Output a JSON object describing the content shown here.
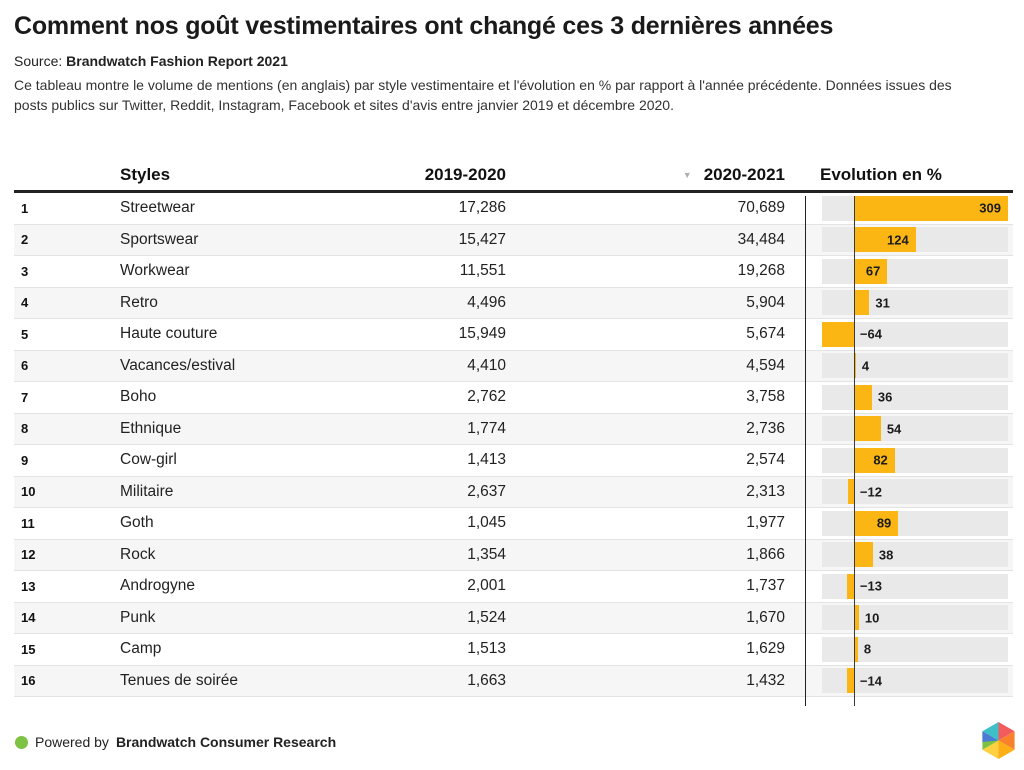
{
  "title": "Comment nos goût vestimentaires ont changé ces 3 dernières années",
  "source": {
    "prefix": "Source:",
    "name": "Brandwatch Fashion Report 2021"
  },
  "description": "Ce tableau montre le volume de mentions (en anglais) par style vestimentaire et l'évolution en % par rapport à l'année précédente. Données issues des posts publics sur Twitter, Reddit, Instagram, Facebook et sites d'avis entre janvier 2019 et décembre 2020.",
  "table": {
    "headers": {
      "rank": "",
      "styles": "Styles",
      "col_2019_2020": "2019-2020",
      "col_2020_2021": "2020-2021",
      "evolution": "Evolution en %"
    },
    "sort": {
      "column": "2020-2021",
      "direction": "desc",
      "icon": "▼"
    },
    "rows": [
      {
        "rank": "1",
        "style": "Streetwear",
        "mentions_2019_2020": "17,286",
        "mentions_2020_2021": "70,689",
        "evolution_pct": 309
      },
      {
        "rank": "2",
        "style": "Sportswear",
        "mentions_2019_2020": "15,427",
        "mentions_2020_2021": "34,484",
        "evolution_pct": 124
      },
      {
        "rank": "3",
        "style": "Workwear",
        "mentions_2019_2020": "11,551",
        "mentions_2020_2021": "19,268",
        "evolution_pct": 67
      },
      {
        "rank": "4",
        "style": "Retro",
        "mentions_2019_2020": "4,496",
        "mentions_2020_2021": "5,904",
        "evolution_pct": 31
      },
      {
        "rank": "5",
        "style": "Haute couture",
        "mentions_2019_2020": "15,949",
        "mentions_2020_2021": "5,674",
        "evolution_pct": -64
      },
      {
        "rank": "6",
        "style": "Vacances/estival",
        "mentions_2019_2020": "4,410",
        "mentions_2020_2021": "4,594",
        "evolution_pct": 4
      },
      {
        "rank": "7",
        "style": "Boho",
        "mentions_2019_2020": "2,762",
        "mentions_2020_2021": "3,758",
        "evolution_pct": 36
      },
      {
        "rank": "8",
        "style": "Ethnique",
        "mentions_2019_2020": "1,774",
        "mentions_2020_2021": "2,736",
        "evolution_pct": 54
      },
      {
        "rank": "9",
        "style": "Cow-girl",
        "mentions_2019_2020": "1,413",
        "mentions_2020_2021": "2,574",
        "evolution_pct": 82
      },
      {
        "rank": "10",
        "style": "Militaire",
        "mentions_2019_2020": "2,637",
        "mentions_2020_2021": "2,313",
        "evolution_pct": -12
      },
      {
        "rank": "11",
        "style": "Goth",
        "mentions_2019_2020": "1,045",
        "mentions_2020_2021": "1,977",
        "evolution_pct": 89
      },
      {
        "rank": "12",
        "style": "Rock",
        "mentions_2019_2020": "1,354",
        "mentions_2020_2021": "1,866",
        "evolution_pct": 38
      },
      {
        "rank": "13",
        "style": "Androgyne",
        "mentions_2019_2020": "2,001",
        "mentions_2020_2021": "1,737",
        "evolution_pct": -13
      },
      {
        "rank": "14",
        "style": "Punk",
        "mentions_2019_2020": "1,524",
        "mentions_2020_2021": "1,670",
        "evolution_pct": 10
      },
      {
        "rank": "15",
        "style": "Camp",
        "mentions_2019_2020": "1,513",
        "mentions_2020_2021": "1,629",
        "evolution_pct": 8
      },
      {
        "rank": "16",
        "style": "Tenues de soirée",
        "mentions_2019_2020": "1,663",
        "mentions_2020_2021": "1,432",
        "evolution_pct": -14
      }
    ]
  },
  "footer": {
    "powered_by": "Powered by",
    "brand": "Brandwatch Consumer Research"
  },
  "colors": {
    "bar": "#FCB614",
    "bar_track": "#E9E9E9",
    "row_alt": "#F6F6F6",
    "brand_green": "#7DC242",
    "text": "#222222",
    "sort_icon": "#B0B0B0"
  },
  "chart_data": {
    "type": "table",
    "title": "Comment nos goût vestimentaires ont changé ces 3 dernières années",
    "subtitle": "Source: Brandwatch Fashion Report 2021",
    "columns": [
      "Styles",
      "2019-2020",
      "2020-2021",
      "Evolution en %"
    ],
    "rows": [
      [
        "Streetwear",
        17286,
        70689,
        309
      ],
      [
        "Sportswear",
        15427,
        34484,
        124
      ],
      [
        "Workwear",
        11551,
        19268,
        67
      ],
      [
        "Retro",
        4496,
        5904,
        31
      ],
      [
        "Haute couture",
        15949,
        5674,
        -64
      ],
      [
        "Vacances/estival",
        4410,
        4594,
        4
      ],
      [
        "Boho",
        2762,
        3758,
        36
      ],
      [
        "Ethnique",
        1774,
        2736,
        54
      ],
      [
        "Cow-girl",
        1413,
        2574,
        82
      ],
      [
        "Militaire",
        2637,
        2313,
        -12
      ],
      [
        "Goth",
        1045,
        1977,
        89
      ],
      [
        "Rock",
        1354,
        1866,
        38
      ],
      [
        "Androgyne",
        2001,
        1737,
        -13
      ],
      [
        "Punk",
        1524,
        1670,
        10
      ],
      [
        "Camp",
        1513,
        1629,
        8
      ],
      [
        "Tenues de soirée",
        1663,
        1432,
        -14
      ]
    ],
    "bar_column": "Evolution en %",
    "bar_type": "inline-bar",
    "bar_range": [
      -64,
      309
    ],
    "sorted_by": "2020-2021 descending",
    "legend": "none",
    "grid": "off"
  }
}
